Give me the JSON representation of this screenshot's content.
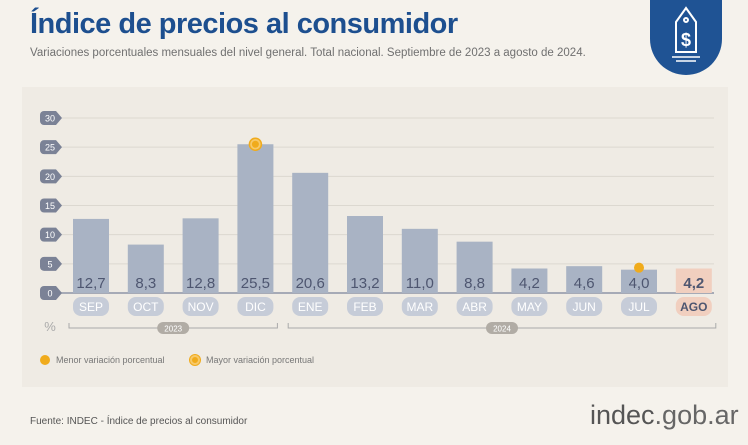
{
  "header": {
    "title": "Índice de precios al consumidor",
    "subtitle": "Variaciones porcentuales mensuales del nivel general. Total nacional. Septiembre de 2023 a agosto de 2024."
  },
  "legend": {
    "min_label": "Menor variación porcentual",
    "max_label": "Mayor variación porcentual"
  },
  "footer": {
    "source": "Fuente: INDEC - Índice de precios al consumidor",
    "brand_main": "indec",
    "brand_suffix": ".gob.ar"
  },
  "colors": {
    "title": "#1d4f8f",
    "bar": "#a9b3c4",
    "highlight_bar": "#f1cfbf",
    "marker": "#f0ab1c"
  },
  "chart_data": {
    "type": "bar",
    "categories": [
      "SEP",
      "OCT",
      "NOV",
      "DIC",
      "ENE",
      "FEB",
      "MAR",
      "ABR",
      "MAY",
      "JUN",
      "JUL",
      "AGO"
    ],
    "values": [
      12.7,
      8.3,
      12.8,
      25.5,
      20.6,
      13.2,
      11.0,
      8.8,
      4.2,
      4.6,
      4.0,
      4.2
    ],
    "value_labels": [
      "12,7",
      "8,3",
      "12,8",
      "25,5",
      "20,6",
      "13,2",
      "11,0",
      "8,8",
      "4,2",
      "4,6",
      "4,0",
      "4,2"
    ],
    "ylabel": "%",
    "ylim": [
      0,
      30
    ],
    "yticks": [
      0,
      5,
      10,
      15,
      20,
      25,
      30
    ],
    "years": [
      {
        "label": "2023",
        "from": 0,
        "to": 3
      },
      {
        "label": "2024",
        "from": 4,
        "to": 11
      }
    ],
    "highlight_index": 11,
    "max_index": 3,
    "min_index": 10,
    "grid": true
  }
}
